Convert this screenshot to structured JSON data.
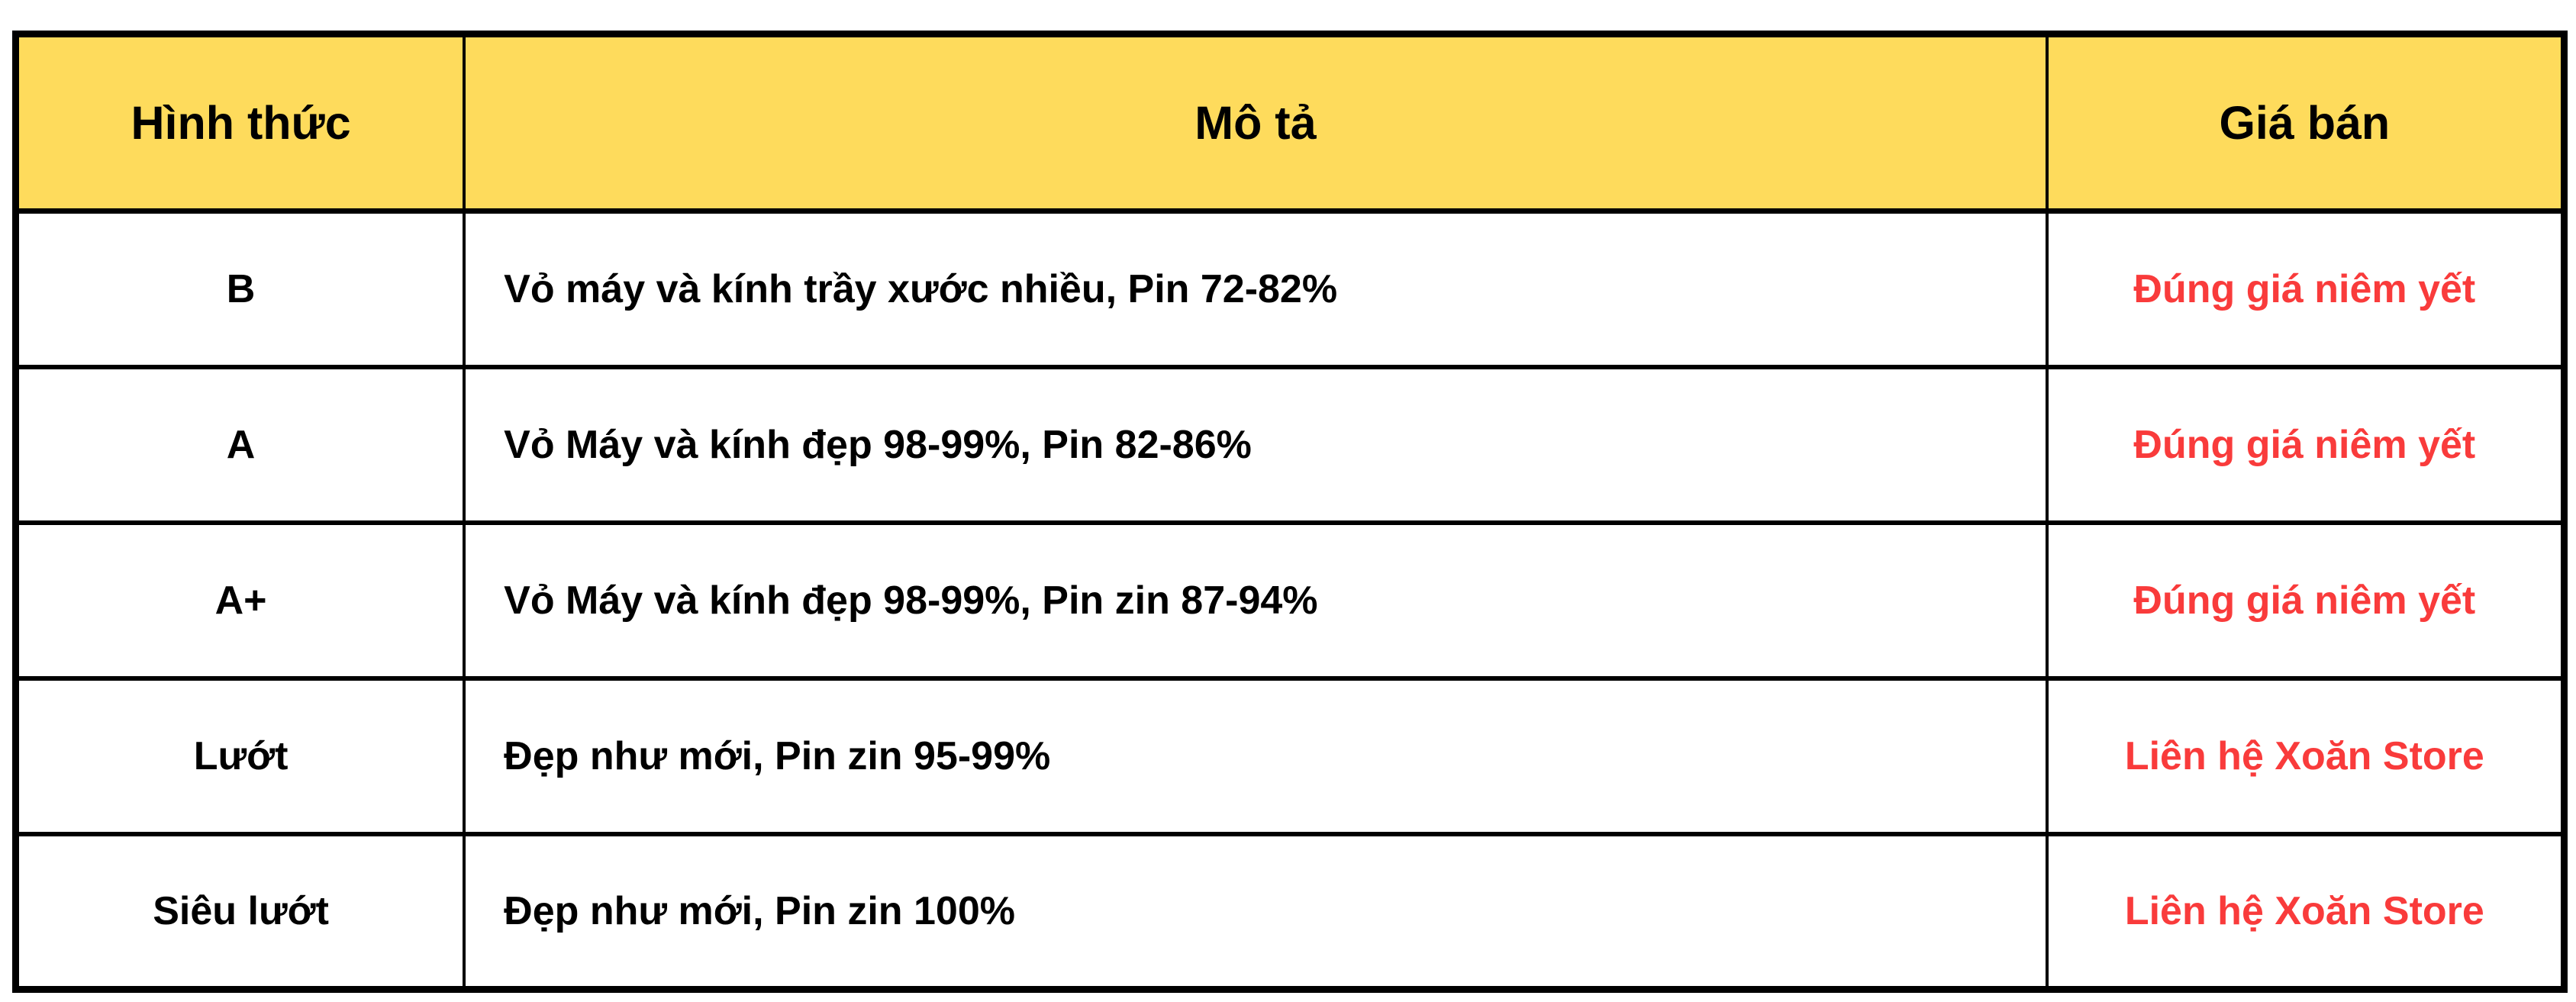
{
  "table": {
    "columns": [
      {
        "label": "Hình thức"
      },
      {
        "label": "Mô tả"
      },
      {
        "label": "Giá bán"
      }
    ],
    "rows": [
      {
        "grade": "B",
        "description": "Vỏ máy và kính trầy xước nhiều, Pin 72-82%",
        "price": "Đúng giá niêm yết"
      },
      {
        "grade": "A",
        "description": "Vỏ Máy và kính đẹp 98-99%, Pin 82-86%",
        "price": "Đúng giá niêm yết"
      },
      {
        "grade": "A+",
        "description": "Vỏ Máy và kính đẹp 98-99%, Pin zin 87-94%",
        "price": "Đúng giá niêm yết"
      },
      {
        "grade": "Lướt",
        "description": "Đẹp như mới, Pin zin 95-99%",
        "price": "Liên hệ Xoăn Store"
      },
      {
        "grade": "Siêu lướt",
        "description": "Đẹp như mới, Pin zin 100%",
        "price": "Liên hệ Xoăn Store"
      }
    ],
    "colors": {
      "header_bg": "#fedb5c",
      "price_text": "#f93b3b",
      "border": "#000000",
      "body_text": "#000000",
      "page_bg": "#ffffff"
    }
  }
}
